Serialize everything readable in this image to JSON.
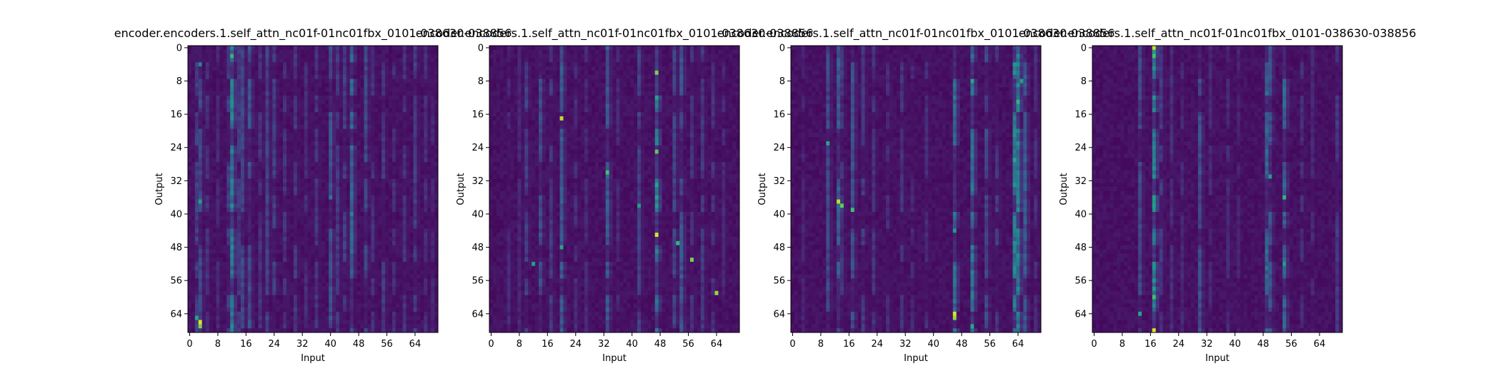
{
  "figure": {
    "background": "#ffffff",
    "colormap": "viridis",
    "colormap_stops": [
      "#440154",
      "#482475",
      "#414487",
      "#355f8d",
      "#2a788e",
      "#21918c",
      "#22a884",
      "#44bf70",
      "#7ad151",
      "#bddf26",
      "#fde725"
    ]
  },
  "chart_data": [
    {
      "type": "heatmap",
      "title": "encoder.encoders.1.self_attn_nc01f-01nc01fbx_0101-038630-038856",
      "xlabel": "Input",
      "ylabel": "Output",
      "xticks": [
        0,
        8,
        16,
        24,
        32,
        40,
        48,
        56,
        64
      ],
      "yticks": [
        0,
        8,
        16,
        24,
        32,
        40,
        48,
        56,
        64
      ],
      "xlim": [
        -0.5,
        70.5
      ],
      "ylim": [
        68.5,
        -0.5
      ],
      "grid": false,
      "n_inputs": 71,
      "n_outputs": 69,
      "columns": [
        {
          "x": 2,
          "w": 0.22
        },
        {
          "x": 3,
          "w": 0.26
        },
        {
          "x": 5,
          "w": 0.18
        },
        {
          "x": 8,
          "w": 0.14
        },
        {
          "x": 11,
          "w": 0.22
        },
        {
          "x": 12,
          "w": 0.5
        },
        {
          "x": 14,
          "w": 0.2
        },
        {
          "x": 15,
          "w": 0.26
        },
        {
          "x": 17,
          "w": 0.3
        },
        {
          "x": 20,
          "w": 0.18
        },
        {
          "x": 22,
          "w": 0.24
        },
        {
          "x": 24,
          "w": 0.22
        },
        {
          "x": 27,
          "w": 0.18
        },
        {
          "x": 30,
          "w": 0.2
        },
        {
          "x": 33,
          "w": 0.16
        },
        {
          "x": 36,
          "w": 0.18
        },
        {
          "x": 40,
          "w": 0.3
        },
        {
          "x": 42,
          "w": 0.2
        },
        {
          "x": 44,
          "w": 0.22
        },
        {
          "x": 46,
          "w": 0.4
        },
        {
          "x": 50,
          "w": 0.26
        },
        {
          "x": 52,
          "w": 0.18
        },
        {
          "x": 55,
          "w": 0.2
        },
        {
          "x": 58,
          "w": 0.16
        },
        {
          "x": 61,
          "w": 0.18
        },
        {
          "x": 64,
          "w": 0.22
        },
        {
          "x": 67,
          "w": 0.16
        },
        {
          "x": 69,
          "w": 0.14
        }
      ],
      "hotspots": [
        {
          "x": 3,
          "y": 66,
          "v": 0.95
        },
        {
          "x": 3,
          "y": 67,
          "v": 0.8
        },
        {
          "x": 2,
          "y": 65,
          "v": 0.6
        },
        {
          "x": 3,
          "y": 37,
          "v": 0.55
        },
        {
          "x": 12,
          "y": 2,
          "v": 0.65
        },
        {
          "x": 12,
          "y": 46,
          "v": 0.45
        },
        {
          "x": 3,
          "y": 4,
          "v": 0.45
        },
        {
          "x": 46,
          "y": 40,
          "v": 0.45
        },
        {
          "x": 40,
          "y": 36,
          "v": 0.4
        }
      ]
    },
    {
      "type": "heatmap",
      "title": "encoder.encoders.1.self_attn_nc01f-01nc01fbx_0101-038630-038856",
      "xlabel": "Input",
      "ylabel": "Output",
      "xticks": [
        0,
        8,
        16,
        24,
        32,
        40,
        48,
        56,
        64
      ],
      "yticks": [
        0,
        8,
        16,
        24,
        32,
        40,
        48,
        56,
        64
      ],
      "xlim": [
        -0.5,
        70.5
      ],
      "ylim": [
        68.5,
        -0.5
      ],
      "grid": false,
      "n_inputs": 71,
      "n_outputs": 69,
      "columns": [
        {
          "x": 5,
          "w": 0.14
        },
        {
          "x": 8,
          "w": 0.14
        },
        {
          "x": 10,
          "w": 0.22
        },
        {
          "x": 14,
          "w": 0.28
        },
        {
          "x": 17,
          "w": 0.2
        },
        {
          "x": 20,
          "w": 0.34
        },
        {
          "x": 24,
          "w": 0.16
        },
        {
          "x": 27,
          "w": 0.14
        },
        {
          "x": 33,
          "w": 0.34
        },
        {
          "x": 36,
          "w": 0.14
        },
        {
          "x": 42,
          "w": 0.24
        },
        {
          "x": 47,
          "w": 0.58
        },
        {
          "x": 52,
          "w": 0.24
        },
        {
          "x": 54,
          "w": 0.32
        },
        {
          "x": 57,
          "w": 0.18
        },
        {
          "x": 60,
          "w": 0.2
        },
        {
          "x": 63,
          "w": 0.18
        },
        {
          "x": 66,
          "w": 0.14
        }
      ],
      "hotspots": [
        {
          "x": 47,
          "y": 6,
          "v": 0.8
        },
        {
          "x": 47,
          "y": 25,
          "v": 0.75
        },
        {
          "x": 47,
          "y": 45,
          "v": 0.95
        },
        {
          "x": 47,
          "y": 33,
          "v": 0.6
        },
        {
          "x": 20,
          "y": 17,
          "v": 0.9
        },
        {
          "x": 33,
          "y": 30,
          "v": 0.7
        },
        {
          "x": 57,
          "y": 51,
          "v": 0.8
        },
        {
          "x": 64,
          "y": 59,
          "v": 0.85
        },
        {
          "x": 53,
          "y": 47,
          "v": 0.65
        },
        {
          "x": 12,
          "y": 52,
          "v": 0.55
        },
        {
          "x": 20,
          "y": 48,
          "v": 0.6
        },
        {
          "x": 42,
          "y": 38,
          "v": 0.55
        }
      ]
    },
    {
      "type": "heatmap",
      "title": "encoder.encoders.1.self_attn_nc01f-01nc01fbx_0101-038630-038856",
      "xlabel": "Input",
      "ylabel": "Output",
      "xticks": [
        0,
        8,
        16,
        24,
        32,
        40,
        48,
        56,
        64
      ],
      "yticks": [
        0,
        8,
        16,
        24,
        32,
        40,
        48,
        56,
        64
      ],
      "xlim": [
        -0.5,
        70.5
      ],
      "ylim": [
        68.5,
        -0.5
      ],
      "grid": false,
      "n_inputs": 71,
      "n_outputs": 69,
      "columns": [
        {
          "x": 3,
          "w": 0.12
        },
        {
          "x": 10,
          "w": 0.26
        },
        {
          "x": 13,
          "w": 0.36
        },
        {
          "x": 14,
          "w": 0.2
        },
        {
          "x": 17,
          "w": 0.3
        },
        {
          "x": 20,
          "w": 0.2
        },
        {
          "x": 23,
          "w": 0.18
        },
        {
          "x": 27,
          "w": 0.16
        },
        {
          "x": 31,
          "w": 0.18
        },
        {
          "x": 34,
          "w": 0.14
        },
        {
          "x": 38,
          "w": 0.16
        },
        {
          "x": 46,
          "w": 0.42
        },
        {
          "x": 51,
          "w": 0.46
        },
        {
          "x": 55,
          "w": 0.26
        },
        {
          "x": 58,
          "w": 0.2
        },
        {
          "x": 63,
          "w": 0.52
        },
        {
          "x": 64,
          "w": 0.5
        },
        {
          "x": 66,
          "w": 0.34
        },
        {
          "x": 69,
          "w": 0.16
        }
      ],
      "hotspots": [
        {
          "x": 13,
          "y": 37,
          "v": 0.9
        },
        {
          "x": 14,
          "y": 38,
          "v": 0.75
        },
        {
          "x": 17,
          "y": 39,
          "v": 0.7
        },
        {
          "x": 10,
          "y": 23,
          "v": 0.6
        },
        {
          "x": 46,
          "y": 64,
          "v": 0.95
        },
        {
          "x": 46,
          "y": 65,
          "v": 0.85
        },
        {
          "x": 51,
          "y": 8,
          "v": 0.6
        },
        {
          "x": 64,
          "y": 13,
          "v": 0.65
        },
        {
          "x": 63,
          "y": 27,
          "v": 0.6
        },
        {
          "x": 65,
          "y": 8,
          "v": 0.55
        },
        {
          "x": 46,
          "y": 44,
          "v": 0.55
        },
        {
          "x": 51,
          "y": 67,
          "v": 0.6
        }
      ]
    },
    {
      "type": "heatmap",
      "title": "encoder.encoders.1.self_attn_nc01f-01nc01fbx_0101-038630-038856",
      "xlabel": "Input",
      "ylabel": "Output",
      "xticks": [
        0,
        8,
        16,
        24,
        32,
        40,
        48,
        56,
        64
      ],
      "yticks": [
        0,
        8,
        16,
        24,
        32,
        40,
        48,
        56,
        64
      ],
      "xlim": [
        -0.5,
        70.5
      ],
      "ylim": [
        68.5,
        -0.5
      ],
      "grid": false,
      "n_inputs": 71,
      "n_outputs": 69,
      "columns": [
        {
          "x": 13,
          "w": 0.26
        },
        {
          "x": 17,
          "w": 0.56
        },
        {
          "x": 19,
          "w": 0.2
        },
        {
          "x": 22,
          "w": 0.16
        },
        {
          "x": 25,
          "w": 0.14
        },
        {
          "x": 30,
          "w": 0.3
        },
        {
          "x": 33,
          "w": 0.14
        },
        {
          "x": 38,
          "w": 0.14
        },
        {
          "x": 41,
          "w": 0.12
        },
        {
          "x": 49,
          "w": 0.4
        },
        {
          "x": 50,
          "w": 0.3
        },
        {
          "x": 54,
          "w": 0.38
        },
        {
          "x": 59,
          "w": 0.16
        },
        {
          "x": 62,
          "w": 0.14
        },
        {
          "x": 69,
          "w": 0.2
        }
      ],
      "hotspots": [
        {
          "x": 17,
          "y": 0,
          "v": 0.9
        },
        {
          "x": 17,
          "y": 68,
          "v": 0.95
        },
        {
          "x": 17,
          "y": 2,
          "v": 0.7
        },
        {
          "x": 17,
          "y": 60,
          "v": 0.7
        },
        {
          "x": 13,
          "y": 64,
          "v": 0.6
        },
        {
          "x": 54,
          "y": 36,
          "v": 0.65
        },
        {
          "x": 50,
          "y": 31,
          "v": 0.55
        },
        {
          "x": 54,
          "y": 52,
          "v": 0.55
        }
      ]
    }
  ]
}
